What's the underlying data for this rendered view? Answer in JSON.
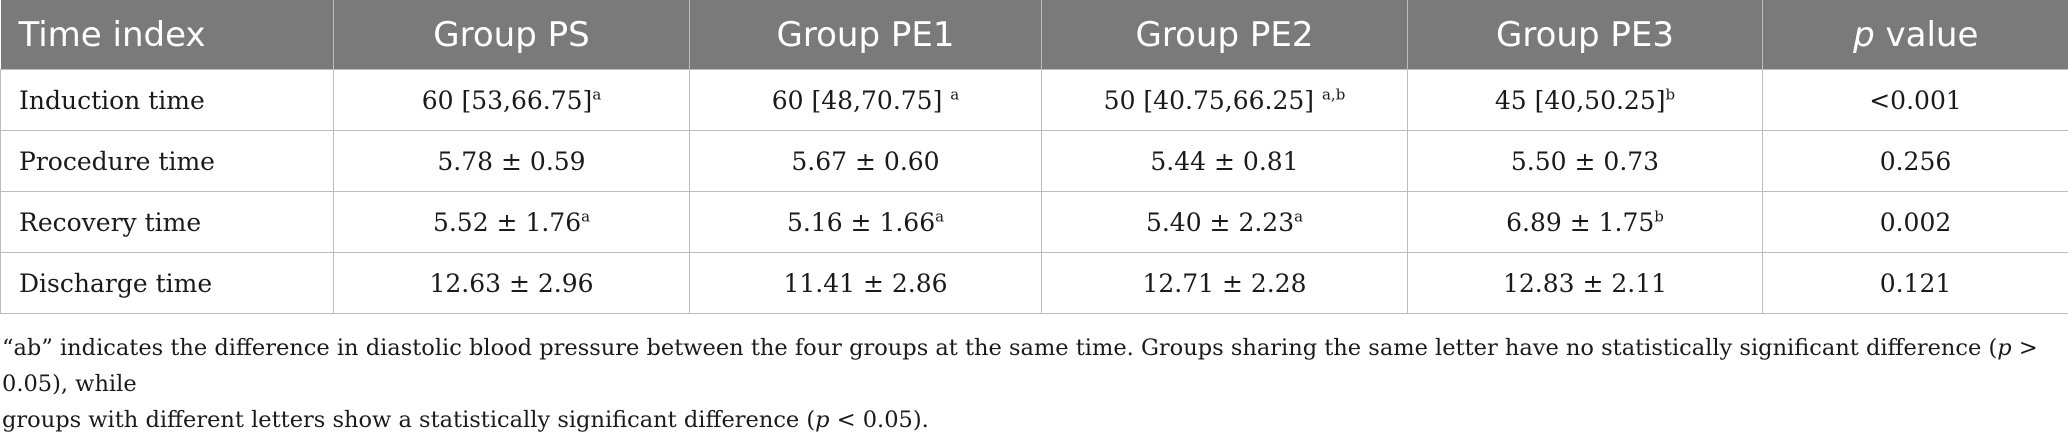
{
  "table": {
    "headers": [
      "Time index",
      "Group PS",
      "Group PE1",
      "Group PE2",
      "Group PE3",
      "p value"
    ],
    "rows": [
      {
        "label": "Induction time",
        "cells": [
          {
            "value": "60 [53,66.75]",
            "sup": "a"
          },
          {
            "value": "60 [48,70.75] ",
            "sup": "a"
          },
          {
            "value": "50 [40.75,66.25] ",
            "sup": "a,b"
          },
          {
            "value": "45 [40,50.25]",
            "sup": "b"
          }
        ],
        "p": "<0.001"
      },
      {
        "label": "Procedure time",
        "cells": [
          {
            "value": "5.78 ± 0.59",
            "sup": ""
          },
          {
            "value": "5.67 ± 0.60",
            "sup": ""
          },
          {
            "value": "5.44 ± 0.81",
            "sup": ""
          },
          {
            "value": "5.50 ± 0.73",
            "sup": ""
          }
        ],
        "p": "0.256"
      },
      {
        "label": "Recovery time",
        "cells": [
          {
            "value": "5.52 ± 1.76",
            "sup": "a"
          },
          {
            "value": "5.16 ± 1.66",
            "sup": "a"
          },
          {
            "value": "5.40 ± 2.23",
            "sup": "a"
          },
          {
            "value": "6.89 ± 1.75",
            "sup": "b"
          }
        ],
        "p": "0.002"
      },
      {
        "label": "Discharge time",
        "cells": [
          {
            "value": "12.63 ± 2.96",
            "sup": ""
          },
          {
            "value": "11.41 ± 2.86",
            "sup": ""
          },
          {
            "value": "12.71 ± 2.28",
            "sup": ""
          },
          {
            "value": "12.83 ± 2.11",
            "sup": ""
          }
        ],
        "p": "0.121"
      }
    ]
  },
  "footnote": {
    "line1_a": "“ab” indicates the difference in diastolic blood pressure between the four groups at the same time. Groups sharing the same letter have no statistically significant difference (",
    "p1": "p",
    "line1_b": " > 0.05), while",
    "line2_a": "groups with different letters show a statistically significant difference (",
    "p2": "p",
    "line2_b": " < 0.05)."
  }
}
